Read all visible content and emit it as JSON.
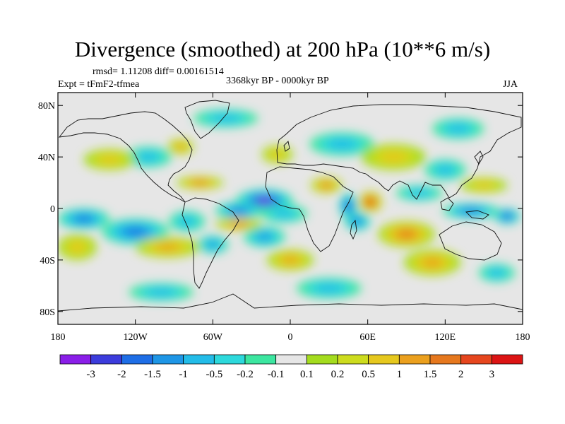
{
  "chart_data": {
    "type": "heatmap",
    "title": "Divergence (smoothed) at 200 hPa (10**6 m/s)",
    "stats_line": "rmsd= 1.11208 diff= 0.00161514",
    "experiment": "Expt = tFmF2-tfmea",
    "period": "3368kyr BP - 0000kyr BP",
    "season": "JJA",
    "x_ticks": [
      {
        "value": -180,
        "label": "180"
      },
      {
        "value": -120,
        "label": "120W"
      },
      {
        "value": -60,
        "label": "60W"
      },
      {
        "value": 0,
        "label": "0"
      },
      {
        "value": 60,
        "label": "60E"
      },
      {
        "value": 120,
        "label": "120E"
      },
      {
        "value": 180,
        "label": "180"
      }
    ],
    "y_ticks": [
      {
        "value": 80,
        "label": "80N"
      },
      {
        "value": 40,
        "label": "40N"
      },
      {
        "value": 0,
        "label": "0"
      },
      {
        "value": -40,
        "label": "40S"
      },
      {
        "value": -80,
        "label": "80S"
      }
    ],
    "xlim": [
      -180,
      180
    ],
    "ylim": [
      -90,
      90
    ],
    "colorbar_levels": [
      "-3",
      "-2",
      "-1.5",
      "-1",
      "-0.5",
      "-0.2",
      "-0.1",
      "0.1",
      "0.2",
      "0.5",
      "1",
      "1.5",
      "2",
      "3"
    ],
    "colorbar_colors": [
      "#8a1ee8",
      "#3c3cdc",
      "#1e6ee6",
      "#1e96e6",
      "#23bce8",
      "#2dd9dc",
      "#3ce6a0",
      "#e6e6e6",
      "#a4dc1e",
      "#cddc1e",
      "#e6c81e",
      "#eba01e",
      "#e6781e",
      "#e6461e",
      "#dc1414"
    ],
    "features": [
      {
        "lon": -20,
        "lat": 6,
        "value": -3.5,
        "rx": 22,
        "ry": 9
      },
      {
        "lon": -40,
        "lat": -2,
        "value": -1.8,
        "rx": 18,
        "ry": 7
      },
      {
        "lon": -5,
        "lat": -4,
        "value": -1.0,
        "rx": 18,
        "ry": 7
      },
      {
        "lon": -120,
        "lat": -18,
        "value": -2.0,
        "rx": 26,
        "ry": 10
      },
      {
        "lon": -160,
        "lat": -8,
        "value": -1.6,
        "rx": 20,
        "ry": 8
      },
      {
        "lon": -80,
        "lat": -10,
        "value": -1.0,
        "rx": 14,
        "ry": 8
      },
      {
        "lon": -60,
        "lat": -28,
        "value": -1.3,
        "rx": 12,
        "ry": 7
      },
      {
        "lon": -20,
        "lat": -22,
        "value": -1.4,
        "rx": 16,
        "ry": 8
      },
      {
        "lon": 45,
        "lat": 2,
        "value": -2.8,
        "rx": 7,
        "ry": 10
      },
      {
        "lon": 52,
        "lat": -10,
        "value": -2.0,
        "rx": 10,
        "ry": 7
      },
      {
        "lon": 140,
        "lat": -2,
        "value": -2.0,
        "rx": 22,
        "ry": 6
      },
      {
        "lon": 168,
        "lat": -6,
        "value": -2.4,
        "rx": 10,
        "ry": 6
      },
      {
        "lon": 100,
        "lat": 12,
        "value": -1.0,
        "rx": 18,
        "ry": 6
      },
      {
        "lon": 120,
        "lat": 30,
        "value": -1.0,
        "rx": 16,
        "ry": 8
      },
      {
        "lon": -110,
        "lat": 40,
        "value": -1.0,
        "rx": 18,
        "ry": 8
      },
      {
        "lon": -50,
        "lat": 70,
        "value": -1.0,
        "rx": 25,
        "ry": 7
      },
      {
        "lon": 40,
        "lat": 50,
        "value": -0.7,
        "rx": 25,
        "ry": 9
      },
      {
        "lon": 130,
        "lat": 62,
        "value": -0.6,
        "rx": 20,
        "ry": 8
      },
      {
        "lon": 30,
        "lat": -62,
        "value": -0.7,
        "rx": 25,
        "ry": 8
      },
      {
        "lon": -100,
        "lat": -65,
        "value": -0.6,
        "rx": 25,
        "ry": 7
      },
      {
        "lon": 160,
        "lat": -50,
        "value": -0.8,
        "rx": 14,
        "ry": 7
      },
      {
        "lon": 62,
        "lat": 5,
        "value": 3.5,
        "rx": 9,
        "ry": 8
      },
      {
        "lon": 28,
        "lat": 18,
        "value": 1.8,
        "rx": 12,
        "ry": 6
      },
      {
        "lon": -70,
        "lat": 20,
        "value": 1.6,
        "rx": 18,
        "ry": 5
      },
      {
        "lon": -40,
        "lat": -12,
        "value": 1.8,
        "rx": 18,
        "ry": 5
      },
      {
        "lon": -95,
        "lat": -30,
        "value": 1.0,
        "rx": 25,
        "ry": 8
      },
      {
        "lon": 90,
        "lat": -20,
        "value": 1.5,
        "rx": 22,
        "ry": 10
      },
      {
        "lon": 110,
        "lat": -42,
        "value": 1.0,
        "rx": 22,
        "ry": 10
      },
      {
        "lon": 0,
        "lat": -40,
        "value": 1.0,
        "rx": 18,
        "ry": 8
      },
      {
        "lon": -85,
        "lat": 48,
        "value": 1.2,
        "rx": 10,
        "ry": 6
      },
      {
        "lon": -140,
        "lat": 38,
        "value": 0.8,
        "rx": 20,
        "ry": 8
      },
      {
        "lon": 80,
        "lat": 40,
        "value": 0.8,
        "rx": 25,
        "ry": 10
      },
      {
        "lon": -10,
        "lat": 42,
        "value": 0.8,
        "rx": 12,
        "ry": 7
      },
      {
        "lon": 150,
        "lat": 18,
        "value": 0.9,
        "rx": 18,
        "ry": 6
      },
      {
        "lon": -165,
        "lat": -30,
        "value": 0.6,
        "rx": 15,
        "ry": 10
      }
    ]
  }
}
